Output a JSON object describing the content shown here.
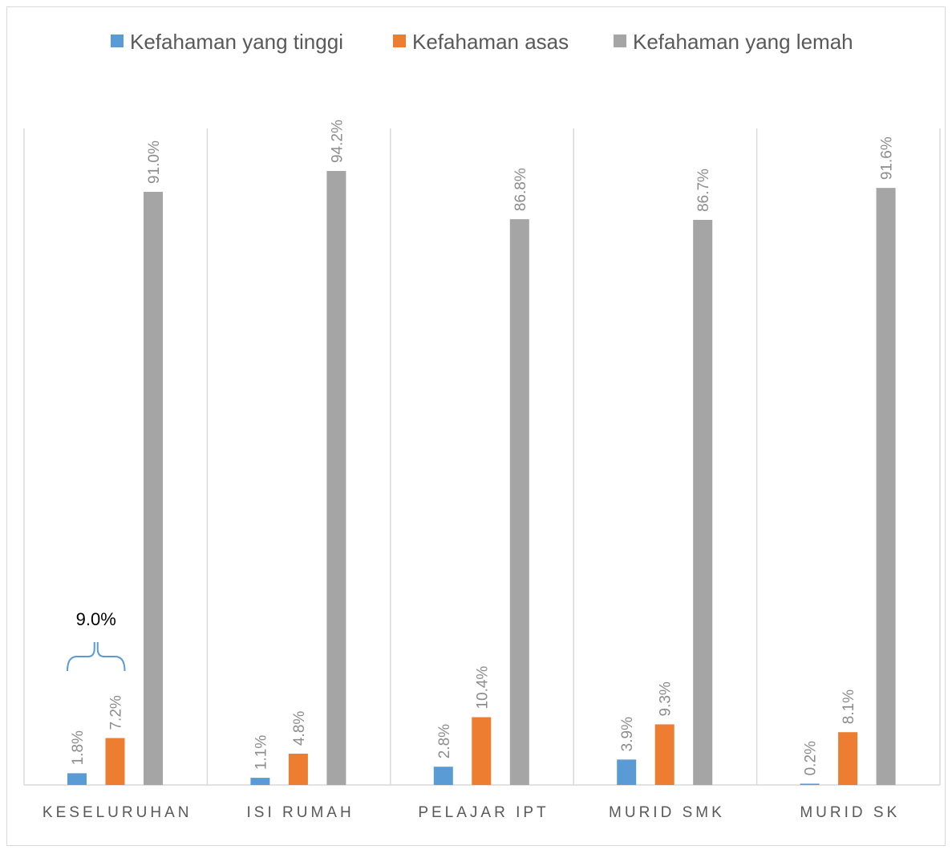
{
  "chart_data": {
    "type": "bar",
    "categories": [
      "KESELURUHAN",
      "ISI RUMAH",
      "PELAJAR IPT",
      "MURID SMK",
      "MURID SK"
    ],
    "series": [
      {
        "name": "Kefahaman yang tinggi",
        "values": [
          1.8,
          1.1,
          2.8,
          3.9,
          0.2
        ],
        "labels": [
          "1.8%",
          "1.1%",
          "2.8%",
          "3.9%",
          "0.2%"
        ],
        "color": "#5b9bd5"
      },
      {
        "name": "Kefahaman asas",
        "values": [
          7.2,
          4.8,
          10.4,
          9.3,
          8.1
        ],
        "labels": [
          "7.2%",
          "4.8%",
          "10.4%",
          "9.3%",
          "8.1%"
        ],
        "color": "#ed7d31"
      },
      {
        "name": "Kefahaman yang lemah",
        "values": [
          91.0,
          94.2,
          86.8,
          86.7,
          91.6
        ],
        "labels": [
          "91.0%",
          "94.2%",
          "86.8%",
          "86.7%",
          "91.6%"
        ],
        "color": "#a5a5a5"
      }
    ],
    "ylim": [
      0,
      100
    ],
    "legend_position": "top",
    "grid": "vertical separators",
    "annotation": {
      "text": "9.0%",
      "category": "KESELURUHAN",
      "brace_color": "#5b9bd5"
    }
  }
}
